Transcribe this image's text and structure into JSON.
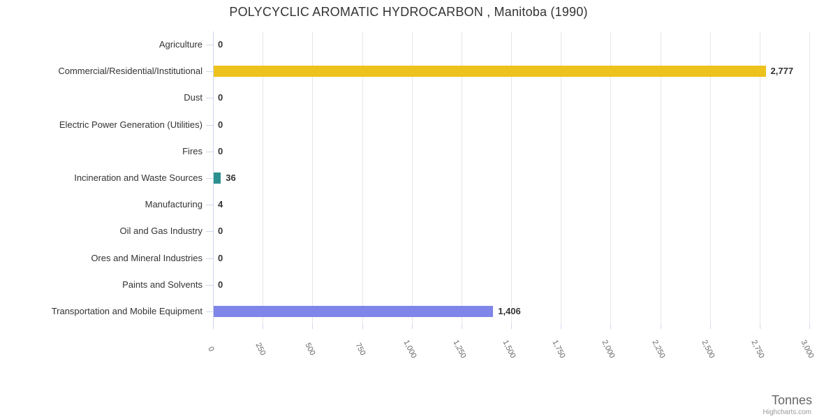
{
  "title": "POLYCYCLIC AROMATIC HYDROCARBON , Manitoba (1990)",
  "axis_title": "Tonnes",
  "credits": "Highcharts.com",
  "chart_data": {
    "type": "bar",
    "orientation": "horizontal",
    "title": "POLYCYCLIC AROMATIC HYDROCARBON , Manitoba (1990)",
    "xlabel": "Tonnes",
    "xlim": [
      0,
      3000
    ],
    "grid": true,
    "legend": false,
    "categories": [
      "Agriculture",
      "Commercial/Residential/Institutional",
      "Dust",
      "Electric Power Generation (Utilities)",
      "Fires",
      "Incineration and Waste Sources",
      "Manufacturing",
      "Oil and Gas Industry",
      "Ores and Mineral Industries",
      "Paints and Solvents",
      "Transportation and Mobile Equipment"
    ],
    "values": [
      0,
      2777,
      0,
      0,
      0,
      36,
      4,
      0,
      0,
      0,
      1406
    ],
    "value_labels": [
      "0",
      "2,777",
      "0",
      "0",
      "0",
      "36",
      "4",
      "0",
      "0",
      "0",
      "1,406"
    ],
    "bar_colors": [
      null,
      "#edc21c",
      null,
      null,
      null,
      "#2b908f",
      null,
      null,
      null,
      null,
      "#8085e9"
    ],
    "x_tick_values": [
      0,
      250,
      500,
      750,
      1000,
      1250,
      1500,
      1750,
      2000,
      2250,
      2500,
      2750,
      3000
    ],
    "x_tick_labels": [
      "0",
      "250",
      "500",
      "750",
      "1,000",
      "1,250",
      "1,500",
      "1,750",
      "2,000",
      "2,250",
      "2,500",
      "2,750",
      "3,000"
    ],
    "colors": {
      "grid": "#e6e6e6",
      "axis_line": "#ccd6eb",
      "label_text": "#333333",
      "tick_text": "#666666"
    }
  }
}
